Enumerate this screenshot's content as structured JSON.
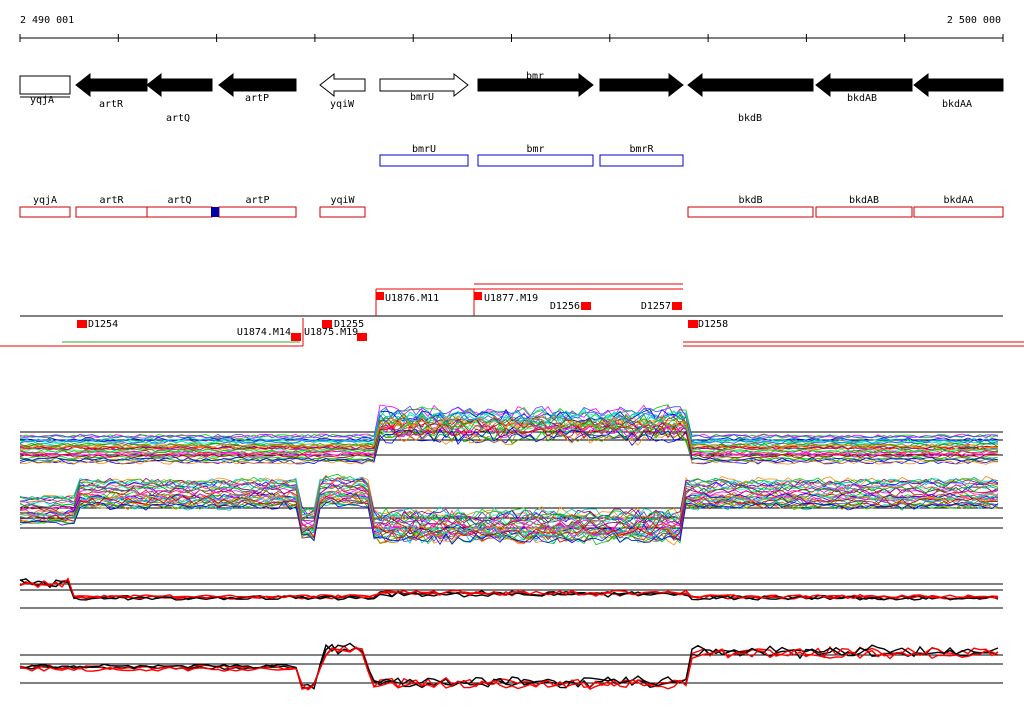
{
  "scale": {
    "start": "2 490 001",
    "end": "2 500 000"
  },
  "genes": [
    "yqjA",
    "artR",
    "artQ",
    "artP",
    "yqiW",
    "bmrU",
    "bmr",
    "bmrR",
    "bkdB",
    "bkdAB",
    "bkdAA"
  ],
  "operons": [
    "bmrU",
    "bmr",
    "bmrR"
  ],
  "annotations": [
    "yqjA",
    "artR",
    "artQ",
    "artP",
    "yqiW",
    "bkdB",
    "bkdAB",
    "bkdAA"
  ],
  "segments": [
    "D1254",
    "U1874.M14",
    "U1875.M19",
    "D1255",
    "U1876.M11",
    "U1877.M19",
    "D1256",
    "D1257",
    "D1258"
  ]
}
